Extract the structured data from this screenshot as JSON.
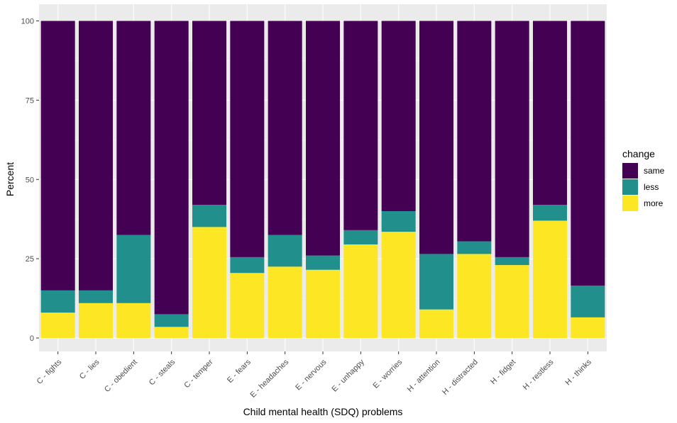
{
  "chart_data": {
    "type": "bar",
    "stacked": true,
    "xlabel": "Child mental health (SDQ) problems",
    "ylabel": "Percent",
    "ylim": [
      0,
      100
    ],
    "yticks": [
      0,
      25,
      50,
      75,
      100
    ],
    "grid": true,
    "legend": {
      "title": "change",
      "position": "right"
    },
    "categories": [
      "C - fights",
      "C - lies",
      "C - obedient",
      "C - steals",
      "C - temper",
      "E - fears",
      "E - headaches",
      "E - nervous",
      "E - unhappy",
      "E - worries",
      "H - attention",
      "H - distracted",
      "H - fidget",
      "H - restless",
      "H - thinks"
    ],
    "series": [
      {
        "name": "more",
        "color": "#FDE725",
        "values": [
          8,
          11,
          11,
          3.5,
          35,
          20.5,
          22.5,
          21.5,
          29.5,
          33.5,
          9,
          26.5,
          23,
          37,
          6.5
        ]
      },
      {
        "name": "less",
        "color": "#21908C",
        "values": [
          7,
          4,
          21.5,
          4,
          7,
          5,
          10,
          4.5,
          4.5,
          6.5,
          17.5,
          4,
          2.5,
          5,
          10
        ]
      },
      {
        "name": "same",
        "color": "#440154",
        "values": [
          85,
          85,
          67.5,
          92.5,
          58,
          74.5,
          67.5,
          74,
          66,
          60,
          73.5,
          69.5,
          74.5,
          58,
          83.5
        ]
      }
    ],
    "legend_order": [
      "same",
      "less",
      "more"
    ]
  }
}
